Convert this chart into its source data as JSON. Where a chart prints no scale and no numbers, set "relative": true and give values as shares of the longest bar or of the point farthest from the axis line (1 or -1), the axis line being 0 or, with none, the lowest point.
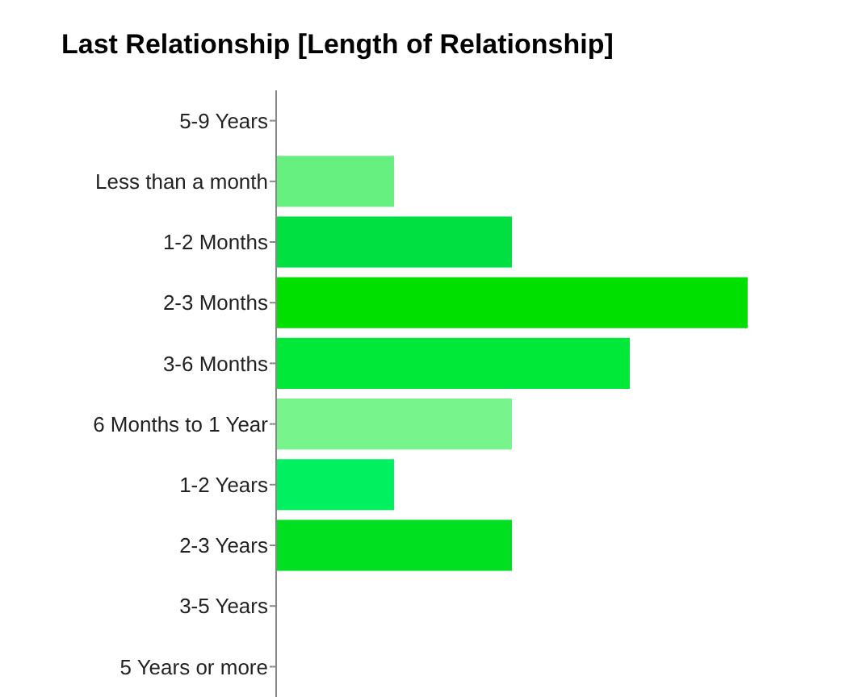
{
  "chart_data": {
    "type": "bar",
    "orientation": "horizontal",
    "relative": true,
    "title": "Last Relationship [Length of Relationship]",
    "categories": [
      "5-9 Years",
      "Less than a month",
      "1-2 Months",
      "2-3 Months",
      "3-6 Months",
      "6 Months to 1 Year",
      "1-2 Years",
      "2-3 Years",
      "3-5 Years",
      "5 Years or more"
    ],
    "values": [
      0,
      0.25,
      0.5,
      1,
      0.75,
      0.5,
      0.25,
      0.5,
      0,
      0
    ],
    "colors": [
      "#00e000",
      "#66f080",
      "#00e040",
      "#00e000",
      "#00e838",
      "#78f48c",
      "#00f060",
      "#00e020",
      "#00e000",
      "#00e000"
    ]
  }
}
